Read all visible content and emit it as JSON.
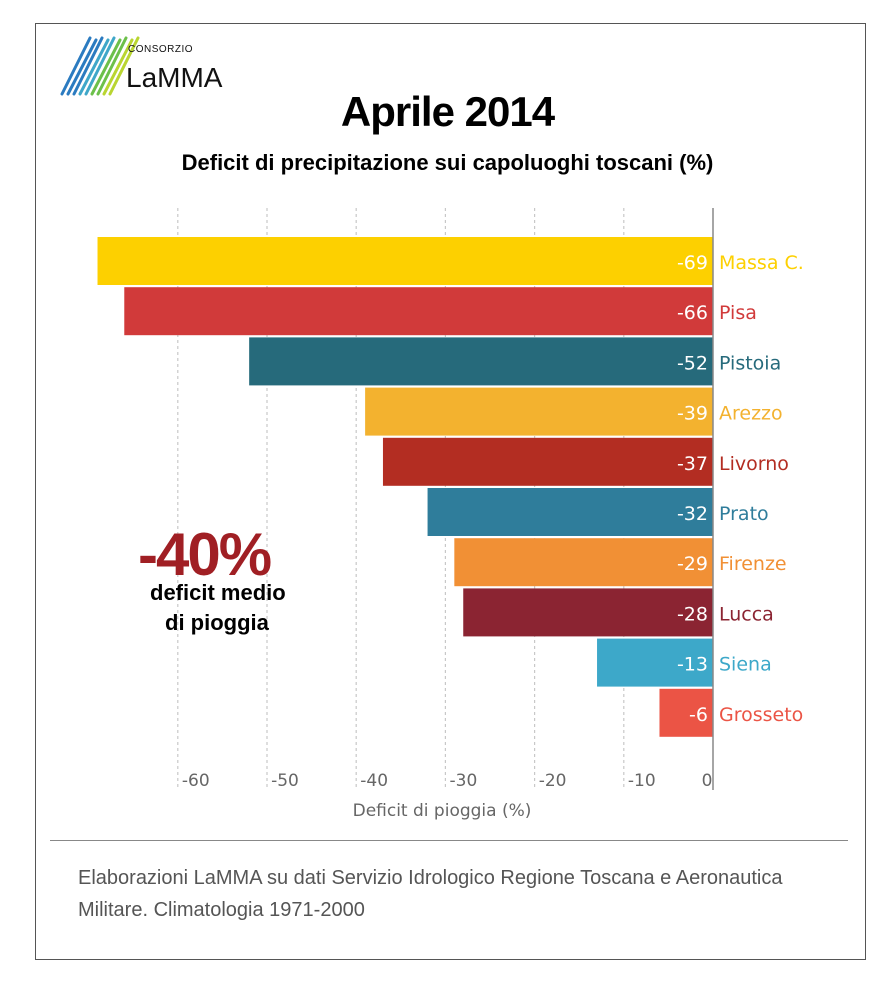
{
  "logo": {
    "small_text": "CONSORZIO",
    "big_text": "LaMMA",
    "colors": [
      "#2b7bc0",
      "#3fa7c9",
      "#6cc04a",
      "#b9d531"
    ]
  },
  "header": {
    "title": "Aprile 2014",
    "subtitle": "Deficit di precipitazione sui capoluoghi toscani (%)"
  },
  "highlight": {
    "value": "-40%",
    "line1": "deficit medio",
    "line2": "di pioggia"
  },
  "footer": {
    "text": "Elaborazioni LaMMA su dati Servizio Idrologico Regione Toscana e Aeronautica Militare. Climatologia 1971-2000"
  },
  "chart_data": {
    "type": "bar",
    "orientation": "horizontal",
    "title": "Aprile 2014",
    "subtitle": "Deficit di precipitazione sui capoluoghi toscani (%)",
    "xlabel": "Deficit di pioggia (%)",
    "ylabel": "",
    "xlim": [
      -70,
      0
    ],
    "xticks": [
      -60,
      -50,
      -40,
      -30,
      -20,
      -10,
      0
    ],
    "grid": true,
    "categories": [
      "Massa C.",
      "Pisa",
      "Pistoia",
      "Arezzo",
      "Livorno",
      "Prato",
      "Firenze",
      "Lucca",
      "Siena",
      "Grosseto"
    ],
    "values": [
      -69,
      -66,
      -52,
      -39,
      -37,
      -32,
      -29,
      -28,
      -13,
      -6
    ],
    "colors": [
      "#fdd000",
      "#d13a3a",
      "#266a7b",
      "#f3b22f",
      "#b32d22",
      "#2f7d9b",
      "#f19035",
      "#8b2432",
      "#3da8c9",
      "#eb5445"
    ]
  }
}
